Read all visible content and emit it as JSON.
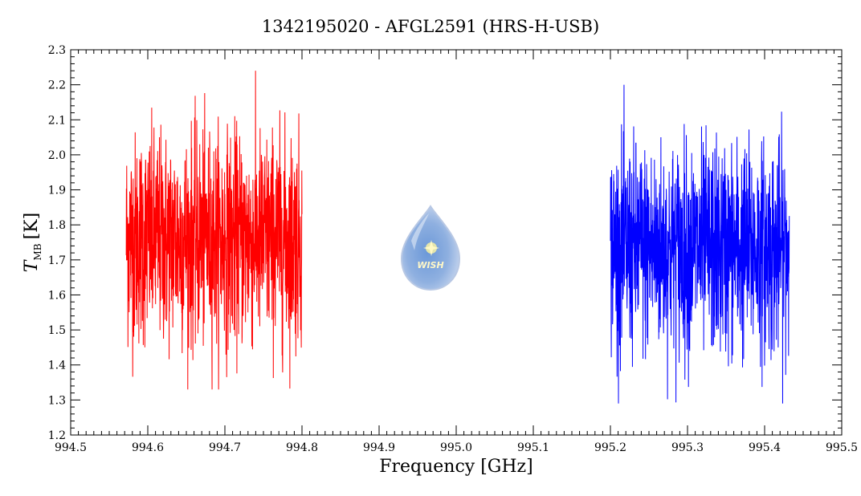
{
  "chart_data": {
    "type": "line",
    "title": "1342195020 - AFGL2591 (HRS-H-USB)",
    "xlabel": "Frequency [GHz]",
    "ylabel": {
      "symbol": "T",
      "subscript": "MB",
      "unit": "[K]"
    },
    "xlim": [
      994.5,
      995.5
    ],
    "ylim": [
      1.2,
      2.3
    ],
    "xticks": [
      "994.5",
      "994.6",
      "994.7",
      "994.8",
      "994.9",
      "995.0",
      "995.1",
      "995.2",
      "995.3",
      "995.4",
      "995.5"
    ],
    "yticks": [
      "1.2",
      "1.3",
      "1.4",
      "1.5",
      "1.6",
      "1.7",
      "1.8",
      "1.9",
      "2.0",
      "2.1",
      "2.2",
      "2.3"
    ],
    "grid": false,
    "series": [
      {
        "color": "#ff0000",
        "x_range": [
          994.572,
          994.8
        ],
        "points": 1000,
        "mean": 1.76,
        "stdev": 0.15,
        "min": 1.33,
        "max": 2.24
      },
      {
        "color": "#0000ff",
        "x_range": [
          995.2,
          995.432
        ],
        "points": 1000,
        "mean": 1.73,
        "stdev": 0.15,
        "min": 1.29,
        "max": 2.2
      }
    ]
  },
  "logo": {
    "text": "WISH"
  }
}
